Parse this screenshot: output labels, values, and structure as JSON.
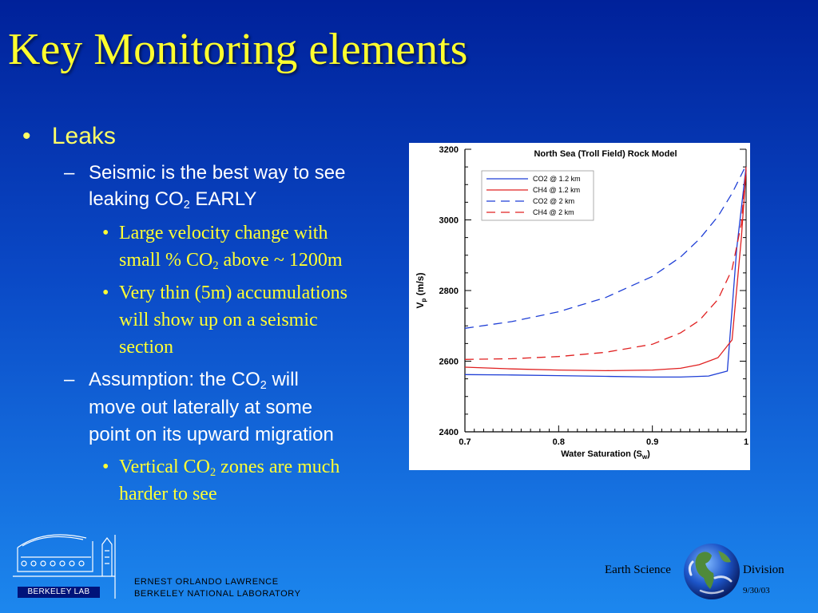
{
  "slide": {
    "title": "Key Monitoring elements"
  },
  "bullets": {
    "b1": {
      "marker": "•",
      "text": "Leaks"
    },
    "b2": {
      "marker": "–",
      "line1": "Seismic is the best way to see",
      "line2_pre": "leaking CO",
      "line2_sub": "2",
      "line2_post": " EARLY"
    },
    "b3": {
      "marker": "•",
      "line1": "Large velocity change with",
      "line2_pre": "small % CO",
      "line2_sub": "2",
      "line2_post": " above ~ 1200m"
    },
    "b4": {
      "marker": "•",
      "line1": "Very thin (5m) accumulations",
      "line2": "will show up on a seismic",
      "line3": "section"
    },
    "b5": {
      "marker": "–",
      "line1_pre": "Assumption: the CO",
      "line1_sub": "2",
      "line1_post": " will",
      "line2": "move out laterally at some",
      "line3": "point on its upward migration"
    },
    "b6": {
      "marker": "•",
      "line1_pre": "Vertical CO",
      "line1_sub": "2",
      "line1_post": " zones are much",
      "line2": "harder to see"
    }
  },
  "chart_data": {
    "type": "line",
    "title": "North Sea (Troll Field) Rock Model",
    "xlabel_pre": "Water Saturation (S",
    "xlabel_sub": "w",
    "xlabel_post": ")",
    "ylabel_pre": "V",
    "ylabel_sub": "p",
    "ylabel_post": " (m/s)",
    "xlim": [
      0.7,
      1.0
    ],
    "ylim": [
      2400,
      3200
    ],
    "xticks": [
      0.7,
      0.8,
      0.9,
      1.0
    ],
    "xtick_labels": [
      "0.7",
      "0.8",
      "0.9",
      "1"
    ],
    "yticks": [
      2400,
      2600,
      2800,
      3000,
      3200
    ],
    "ytick_labels": [
      "2400",
      "2600",
      "2800",
      "3000",
      "3200"
    ],
    "legend_position": "top-left",
    "series": [
      {
        "name": "CO2 @ 1.2 km",
        "color": "#1f3fd6",
        "dash": "solid",
        "x": [
          0.7,
          0.75,
          0.8,
          0.85,
          0.9,
          0.93,
          0.96,
          0.98,
          0.99,
          1.0
        ],
        "y": [
          2562,
          2561,
          2559,
          2557,
          2555,
          2555,
          2558,
          2572,
          2920,
          3150
        ]
      },
      {
        "name": "CH4 @ 1.2 km",
        "color": "#e02020",
        "dash": "solid",
        "x": [
          0.7,
          0.75,
          0.8,
          0.85,
          0.9,
          0.93,
          0.95,
          0.97,
          0.985,
          0.995,
          1.0
        ],
        "y": [
          2583,
          2578,
          2575,
          2573,
          2575,
          2580,
          2590,
          2610,
          2660,
          2950,
          3140
        ]
      },
      {
        "name": "CO2 @ 2 km",
        "color": "#1f3fd6",
        "dash": "long",
        "x": [
          0.7,
          0.75,
          0.8,
          0.85,
          0.9,
          0.93,
          0.95,
          0.97,
          0.985,
          1.0
        ],
        "y": [
          2693,
          2712,
          2740,
          2780,
          2840,
          2895,
          2945,
          3010,
          3075,
          3155
        ]
      },
      {
        "name": "CH4 @ 2 km",
        "color": "#e02020",
        "dash": "long",
        "x": [
          0.7,
          0.75,
          0.8,
          0.85,
          0.9,
          0.93,
          0.95,
          0.97,
          0.985,
          0.995,
          1.0
        ],
        "y": [
          2605,
          2607,
          2613,
          2625,
          2648,
          2680,
          2715,
          2775,
          2860,
          2990,
          3150
        ]
      }
    ]
  },
  "footer": {
    "lab_badge": "BERKELEY LAB",
    "lab_line1": "ERNEST ORLANDO LAWRENCE",
    "lab_line2": "BERKELEY NATIONAL LABORATORY",
    "division_left": "Earth Science",
    "division_right": "Division",
    "date": "9/30/03"
  },
  "colors": {
    "title": "#ffff2e",
    "level1": "#ffff66",
    "level2": "#ffffff",
    "level3": "#ffff33",
    "series_blue": "#1f3fd6",
    "series_red": "#e02020"
  },
  "icons": [
    "lab-logo-icon",
    "globe-icon"
  ]
}
